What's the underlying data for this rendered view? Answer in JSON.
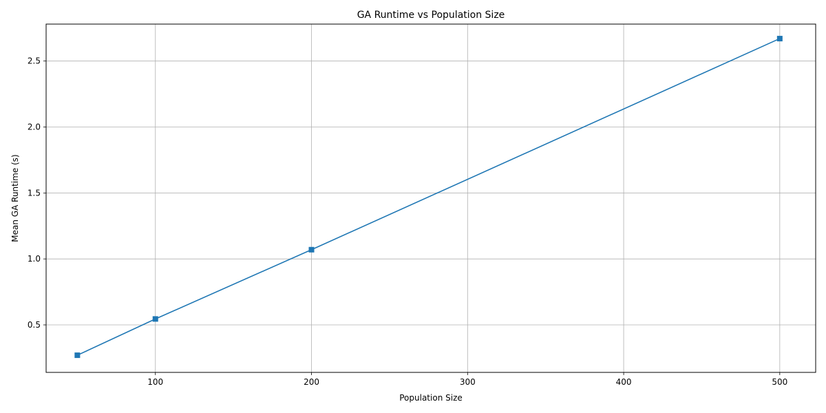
{
  "chart_data": {
    "type": "line",
    "title": "GA Runtime vs Population Size",
    "xlabel": "Population Size",
    "ylabel": "Mean GA Runtime (s)",
    "xlim": [
      30,
      523
    ],
    "ylim": [
      0.14,
      2.78
    ],
    "xticks": [
      100,
      200,
      300,
      400,
      500
    ],
    "yticks": [
      0.5,
      1.0,
      1.5,
      2.0,
      2.5
    ],
    "xtick_labels": [
      "100",
      "200",
      "300",
      "400",
      "500"
    ],
    "ytick_labels": [
      "0.5",
      "1.0",
      "1.5",
      "2.0",
      "2.5"
    ],
    "grid": true,
    "marker": "square",
    "line_color": "#1f77b4",
    "series": [
      {
        "x": [
          50,
          100,
          200,
          500
        ],
        "y": [
          0.27,
          0.545,
          1.07,
          2.67
        ]
      }
    ]
  }
}
